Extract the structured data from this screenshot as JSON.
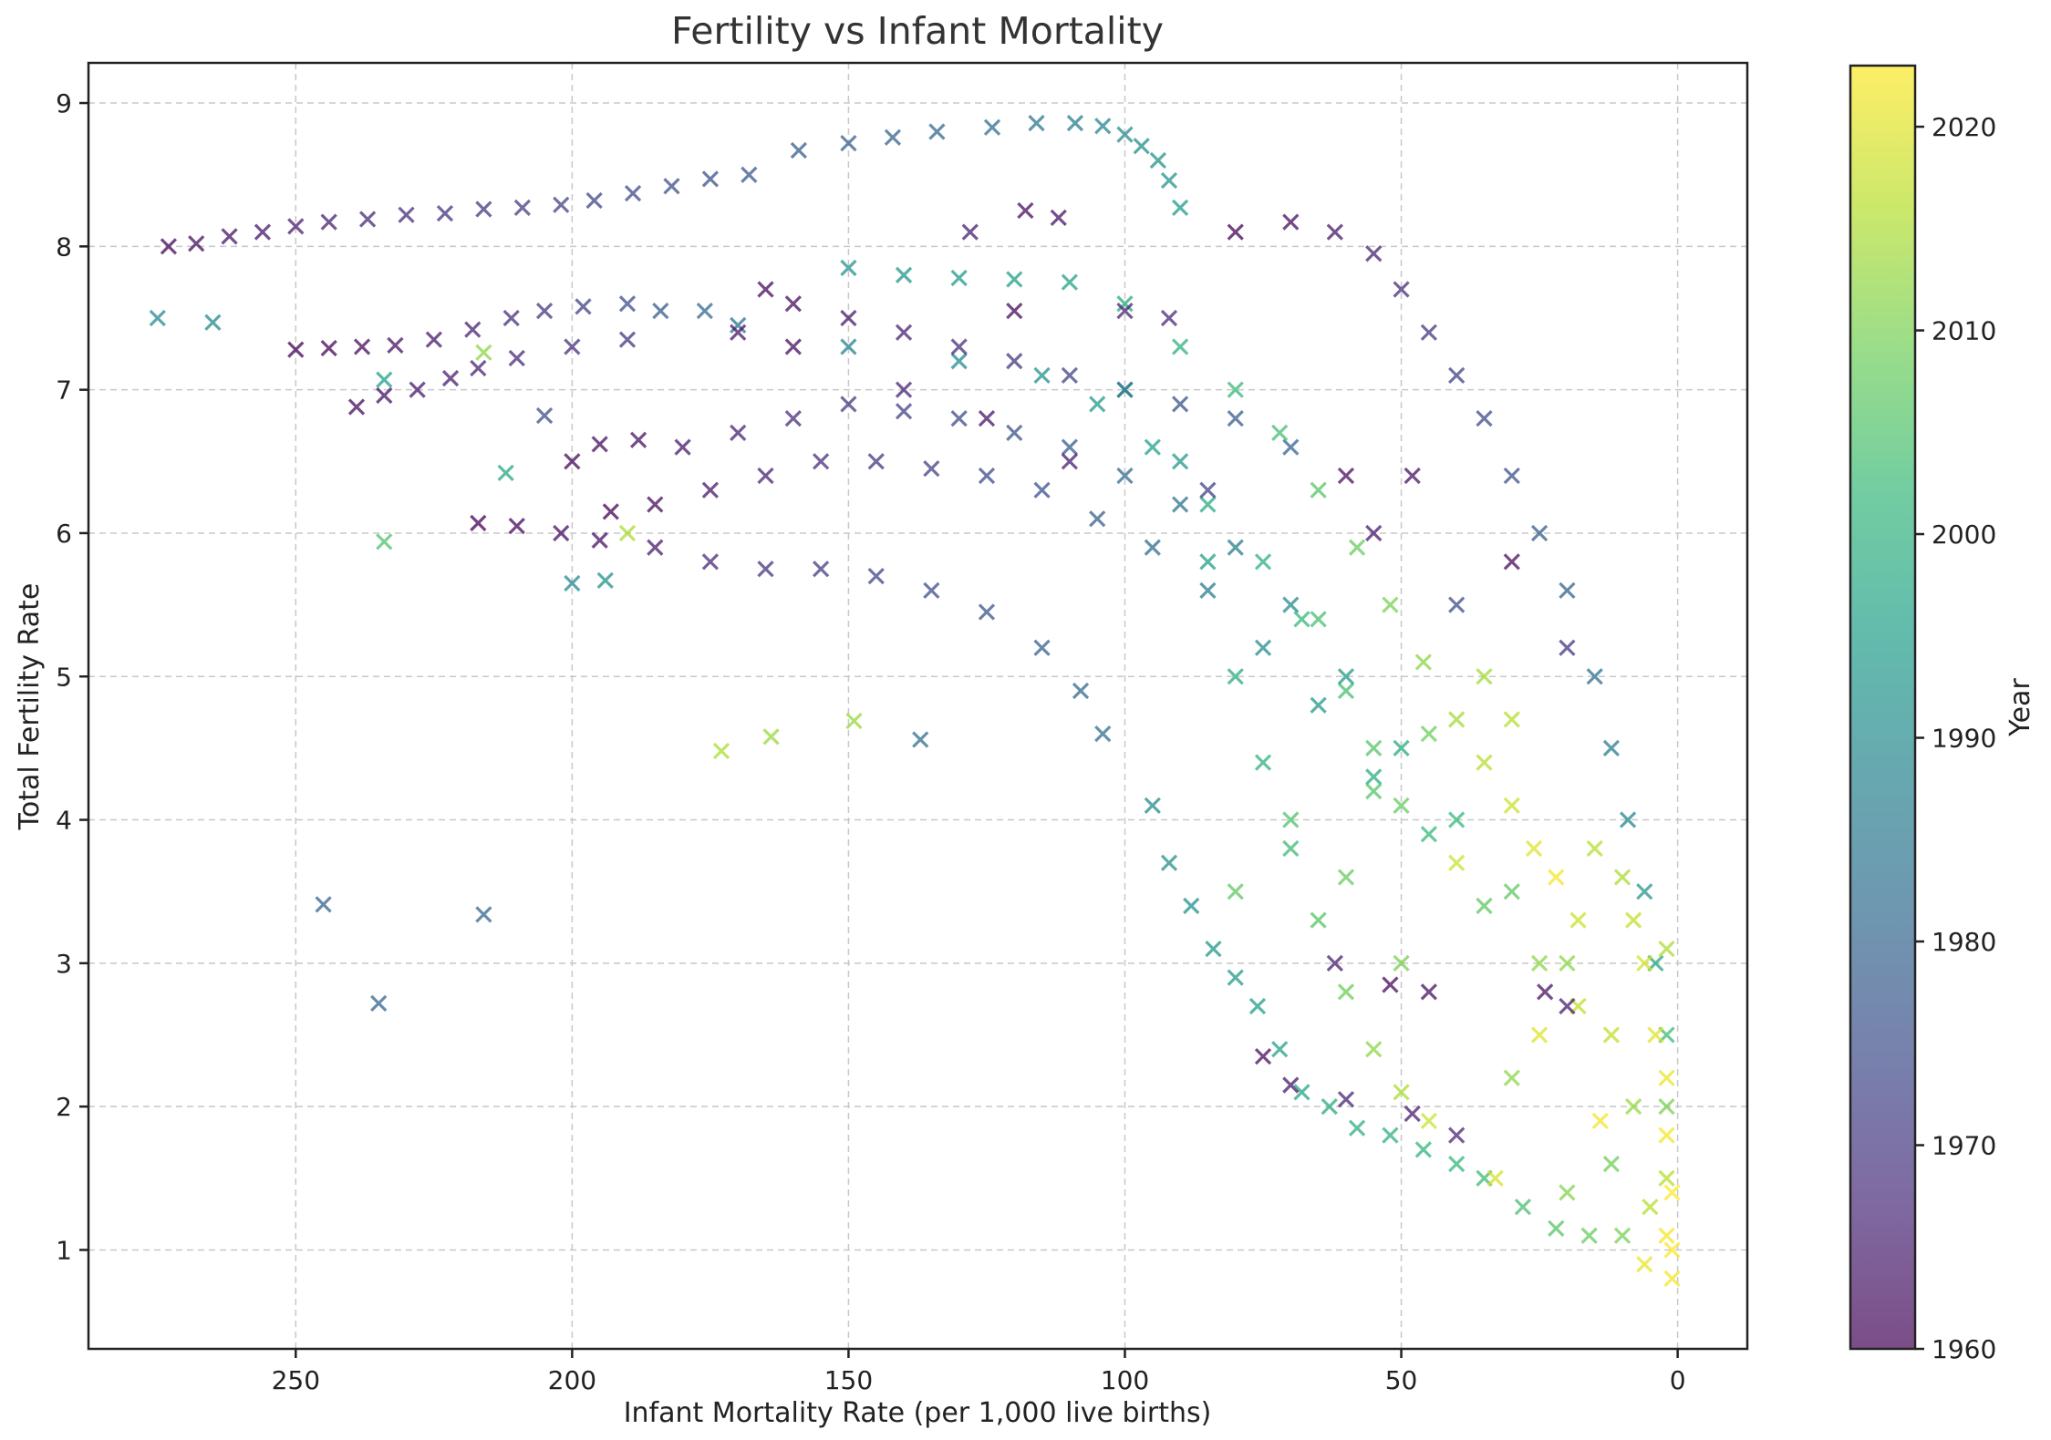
{
  "chart_data": {
    "type": "scatter",
    "title": "Fertility vs Infant Mortality",
    "xlabel": "Infant Mortality Rate (per 1,000 live births)",
    "ylabel": "Total Fertility Rate",
    "xlim": [
      287.5,
      -12.6
    ],
    "x_inverted": true,
    "ylim": [
      0.31,
      9.28
    ],
    "xticks": [
      250,
      200,
      150,
      100,
      50,
      0
    ],
    "yticks": [
      1,
      2,
      3,
      4,
      5,
      6,
      7,
      8,
      9
    ],
    "grid": true,
    "marker": "x",
    "colorbar": {
      "label": "Year",
      "range": [
        1960,
        2023
      ],
      "ticks": [
        1960,
        1970,
        1980,
        1990,
        2000,
        2010,
        2020
      ],
      "colormap": "viridis"
    },
    "colormap_stops": [
      "#440154",
      "#482878",
      "#3e4989",
      "#31688e",
      "#26828e",
      "#1f9e89",
      "#35b779",
      "#6ece58",
      "#b5de2b",
      "#fde725"
    ],
    "point_fields": [
      "infant_mortality",
      "fertility",
      "year"
    ],
    "points": [
      [
        275,
        7.5,
        1990
      ],
      [
        265,
        7.47,
        1990
      ],
      [
        245,
        3.41,
        1980
      ],
      [
        235,
        2.72,
        1980
      ],
      [
        216,
        3.34,
        1980
      ],
      [
        234,
        5.94,
        2005
      ],
      [
        212,
        6.42,
        1997
      ],
      [
        234,
        7.07,
        1995
      ],
      [
        216,
        7.26,
        2012
      ],
      [
        200,
        5.65,
        1990
      ],
      [
        194,
        5.67,
        1992
      ],
      [
        173,
        4.48,
        2015
      ],
      [
        164,
        4.58,
        2013
      ],
      [
        149,
        4.69,
        2013
      ],
      [
        137,
        4.56,
        1982
      ],
      [
        190,
        6.0,
        2015
      ],
      [
        205,
        6.82,
        1975
      ],
      [
        273,
        8.0,
        1961
      ],
      [
        268,
        8.02,
        1962
      ],
      [
        262,
        8.07,
        1963
      ],
      [
        256,
        8.1,
        1964
      ],
      [
        250,
        8.14,
        1965
      ],
      [
        244,
        8.17,
        1966
      ],
      [
        237,
        8.19,
        1967
      ],
      [
        230,
        8.22,
        1968
      ],
      [
        223,
        8.23,
        1969
      ],
      [
        216,
        8.26,
        1970
      ],
      [
        209,
        8.27,
        1971
      ],
      [
        202,
        8.29,
        1972
      ],
      [
        196,
        8.32,
        1973
      ],
      [
        189,
        8.37,
        1974
      ],
      [
        182,
        8.42,
        1975
      ],
      [
        175,
        8.47,
        1976
      ],
      [
        168,
        8.5,
        1977
      ],
      [
        159,
        8.67,
        1978
      ],
      [
        150,
        8.72,
        1979
      ],
      [
        142,
        8.76,
        1980
      ],
      [
        134,
        8.8,
        1981
      ],
      [
        124,
        8.83,
        1983
      ],
      [
        116,
        8.86,
        1985
      ],
      [
        109,
        8.86,
        1987
      ],
      [
        104,
        8.84,
        1989
      ],
      [
        100,
        8.78,
        1990
      ],
      [
        97,
        8.7,
        1991
      ],
      [
        94,
        8.6,
        1992
      ],
      [
        92,
        8.46,
        1993
      ],
      [
        90,
        8.27,
        1994
      ],
      [
        250,
        7.28,
        1960
      ],
      [
        244,
        7.29,
        1961
      ],
      [
        238,
        7.3,
        1962
      ],
      [
        232,
        7.31,
        1963
      ],
      [
        225,
        7.35,
        1964
      ],
      [
        218,
        7.42,
        1966
      ],
      [
        211,
        7.5,
        1968
      ],
      [
        205,
        7.55,
        1970
      ],
      [
        198,
        7.58,
        1972
      ],
      [
        190,
        7.6,
        1975
      ],
      [
        184,
        7.55,
        1978
      ],
      [
        176,
        7.55,
        1981
      ],
      [
        170,
        7.45,
        1984
      ],
      [
        150,
        7.3,
        1988
      ],
      [
        130,
        7.2,
        1990
      ],
      [
        115,
        7.1,
        1992
      ],
      [
        105,
        6.9,
        1994
      ],
      [
        95,
        6.6,
        1996
      ],
      [
        85,
        6.2,
        1998
      ],
      [
        75,
        5.8,
        2000
      ],
      [
        68,
        5.4,
        2002
      ],
      [
        60,
        4.9,
        2004
      ],
      [
        55,
        4.5,
        2006
      ],
      [
        50,
        4.1,
        2008
      ],
      [
        239,
        6.88,
        1962
      ],
      [
        234,
        6.96,
        1963
      ],
      [
        228,
        7.0,
        1964
      ],
      [
        222,
        7.08,
        1965
      ],
      [
        217,
        7.15,
        1966
      ],
      [
        210,
        7.22,
        1967
      ],
      [
        200,
        7.3,
        1968
      ],
      [
        190,
        7.35,
        1970
      ],
      [
        165,
        7.7,
        1961
      ],
      [
        160,
        7.6,
        1962
      ],
      [
        150,
        7.5,
        1964
      ],
      [
        140,
        7.4,
        1966
      ],
      [
        130,
        7.3,
        1968
      ],
      [
        120,
        7.2,
        1970
      ],
      [
        110,
        7.1,
        1972
      ],
      [
        100,
        7.0,
        1974
      ],
      [
        90,
        6.9,
        1976
      ],
      [
        80,
        6.8,
        1978
      ],
      [
        70,
        6.6,
        1980
      ],
      [
        200,
        6.5,
        1961
      ],
      [
        195,
        6.62,
        1962
      ],
      [
        188,
        6.65,
        1963
      ],
      [
        180,
        6.6,
        1964
      ],
      [
        170,
        6.7,
        1966
      ],
      [
        160,
        6.8,
        1968
      ],
      [
        150,
        6.9,
        1970
      ],
      [
        140,
        6.85,
        1972
      ],
      [
        130,
        6.8,
        1974
      ],
      [
        120,
        6.7,
        1976
      ],
      [
        110,
        6.6,
        1978
      ],
      [
        100,
        6.4,
        1981
      ],
      [
        90,
        6.2,
        1984
      ],
      [
        80,
        5.9,
        1987
      ],
      [
        70,
        5.5,
        1990
      ],
      [
        60,
        5.0,
        1994
      ],
      [
        50,
        4.5,
        1998
      ],
      [
        40,
        4.0,
        2002
      ],
      [
        30,
        3.5,
        2007
      ],
      [
        20,
        3.0,
        2012
      ],
      [
        12,
        2.5,
        2017
      ],
      [
        193,
        6.15,
        1960
      ],
      [
        185,
        6.2,
        1962
      ],
      [
        175,
        6.3,
        1964
      ],
      [
        165,
        6.4,
        1966
      ],
      [
        155,
        6.5,
        1968
      ],
      [
        145,
        6.5,
        1970
      ],
      [
        135,
        6.45,
        1972
      ],
      [
        125,
        6.4,
        1974
      ],
      [
        115,
        6.3,
        1976
      ],
      [
        105,
        6.1,
        1979
      ],
      [
        95,
        5.9,
        1982
      ],
      [
        85,
        5.6,
        1986
      ],
      [
        75,
        5.2,
        1990
      ],
      [
        65,
        4.8,
        1994
      ],
      [
        55,
        4.3,
        1998
      ],
      [
        45,
        3.9,
        2002
      ],
      [
        35,
        3.4,
        2007
      ],
      [
        25,
        3.0,
        2012
      ],
      [
        18,
        2.7,
        2017
      ],
      [
        217,
        6.07,
        1960
      ],
      [
        210,
        6.05,
        1961
      ],
      [
        202,
        6.0,
        1962
      ],
      [
        195,
        5.95,
        1963
      ],
      [
        185,
        5.9,
        1965
      ],
      [
        175,
        5.8,
        1967
      ],
      [
        165,
        5.75,
        1969
      ],
      [
        155,
        5.75,
        1971
      ],
      [
        145,
        5.7,
        1973
      ],
      [
        135,
        5.6,
        1975
      ],
      [
        125,
        5.45,
        1977
      ],
      [
        115,
        5.2,
        1979
      ],
      [
        108,
        4.9,
        1981
      ],
      [
        104,
        4.6,
        1983
      ],
      [
        80,
        8.1,
        1960
      ],
      [
        70,
        8.17,
        1962
      ],
      [
        62,
        8.1,
        1964
      ],
      [
        55,
        7.95,
        1966
      ],
      [
        50,
        7.7,
        1968
      ],
      [
        45,
        7.4,
        1970
      ],
      [
        40,
        7.1,
        1972
      ],
      [
        35,
        6.8,
        1974
      ],
      [
        30,
        6.4,
        1976
      ],
      [
        25,
        6.0,
        1978
      ],
      [
        20,
        5.6,
        1980
      ],
      [
        15,
        5.0,
        1983
      ],
      [
        12,
        4.5,
        1986
      ],
      [
        9,
        4.0,
        1989
      ],
      [
        6,
        3.5,
        1993
      ],
      [
        4,
        3.0,
        1997
      ],
      [
        2,
        2.5,
        2003
      ],
      [
        2,
        2.0,
        2010
      ],
      [
        2,
        1.5,
        2016
      ],
      [
        2,
        1.1,
        2022
      ],
      [
        150,
        7.85,
        1992
      ],
      [
        140,
        7.8,
        1993
      ],
      [
        130,
        7.78,
        1994
      ],
      [
        120,
        7.77,
        1995
      ],
      [
        110,
        7.75,
        1996
      ],
      [
        100,
        7.6,
        1998
      ],
      [
        90,
        7.3,
        2000
      ],
      [
        80,
        7.0,
        2002
      ],
      [
        72,
        6.7,
        2004
      ],
      [
        65,
        6.3,
        2006
      ],
      [
        58,
        5.9,
        2008
      ],
      [
        52,
        5.5,
        2010
      ],
      [
        46,
        5.1,
        2012
      ],
      [
        40,
        4.7,
        2014
      ],
      [
        35,
        4.4,
        2016
      ],
      [
        30,
        4.1,
        2018
      ],
      [
        26,
        3.8,
        2020
      ],
      [
        22,
        3.6,
        2022
      ],
      [
        100,
        7.0,
        1990
      ],
      [
        90,
        6.5,
        1993
      ],
      [
        85,
        5.8,
        1995
      ],
      [
        80,
        5.0,
        1998
      ],
      [
        75,
        4.4,
        2000
      ],
      [
        70,
        3.8,
        2003
      ],
      [
        65,
        3.3,
        2006
      ],
      [
        60,
        2.8,
        2009
      ],
      [
        55,
        2.4,
        2012
      ],
      [
        50,
        2.1,
        2015
      ],
      [
        45,
        1.9,
        2018
      ],
      [
        95,
        4.1,
        1990
      ],
      [
        92,
        3.7,
        1991
      ],
      [
        88,
        3.4,
        1992
      ],
      [
        84,
        3.1,
        1993
      ],
      [
        80,
        2.9,
        1994
      ],
      [
        76,
        2.7,
        1995
      ],
      [
        72,
        2.4,
        1996
      ],
      [
        68,
        2.1,
        1997
      ],
      [
        63,
        2.0,
        1998
      ],
      [
        58,
        1.85,
        1999
      ],
      [
        52,
        1.8,
        2000
      ],
      [
        46,
        1.7,
        2001
      ],
      [
        40,
        1.6,
        2002
      ],
      [
        35,
        1.5,
        2003
      ],
      [
        28,
        1.3,
        2004
      ],
      [
        22,
        1.15,
        2006
      ],
      [
        16,
        1.1,
        2008
      ],
      [
        10,
        1.1,
        2010
      ],
      [
        75,
        2.35,
        1962
      ],
      [
        70,
        2.15,
        1964
      ],
      [
        60,
        2.05,
        1966
      ],
      [
        48,
        1.95,
        1965
      ],
      [
        40,
        1.8,
        1967
      ],
      [
        24,
        2.8,
        1963
      ],
      [
        20,
        2.7,
        1965
      ],
      [
        52,
        2.85,
        1961
      ],
      [
        10,
        3.6,
        2015
      ],
      [
        8,
        3.3,
        2017
      ],
      [
        6,
        3.0,
        2019
      ],
      [
        4,
        2.5,
        2020
      ],
      [
        2,
        2.2,
        2021
      ],
      [
        2,
        1.8,
        2022
      ],
      [
        1,
        1.4,
        2023
      ],
      [
        1,
        1.0,
        2023
      ],
      [
        1,
        0.8,
        2022
      ],
      [
        6,
        0.9,
        2021
      ],
      [
        2,
        3.1,
        2015
      ],
      [
        18,
        3.3,
        2018
      ],
      [
        15,
        3.8,
        2016
      ],
      [
        30,
        4.7,
        2016
      ],
      [
        35,
        5.0,
        2014
      ],
      [
        40,
        3.7,
        2018
      ],
      [
        25,
        2.5,
        2020
      ],
      [
        33,
        1.5,
        2019
      ],
      [
        14,
        1.9,
        2022
      ],
      [
        60,
        3.6,
        2008
      ],
      [
        55,
        4.2,
        2006
      ],
      [
        45,
        4.6,
        2009
      ],
      [
        70,
        4.0,
        2005
      ],
      [
        80,
        3.5,
        2007
      ],
      [
        65,
        5.4,
        2004
      ],
      [
        50,
        3.0,
        2010
      ],
      [
        30,
        2.2,
        2012
      ],
      [
        20,
        1.4,
        2011
      ],
      [
        12,
        1.6,
        2009
      ],
      [
        8,
        2.0,
        2013
      ],
      [
        5,
        1.3,
        2016
      ],
      [
        60,
        6.4,
        1962
      ],
      [
        55,
        6.0,
        1964
      ],
      [
        48,
        6.4,
        1963
      ],
      [
        30,
        5.8,
        1962
      ],
      [
        62,
        3.0,
        1965
      ],
      [
        45,
        2.8,
        1963
      ],
      [
        20,
        5.2,
        1970
      ],
      [
        40,
        5.5,
        1975
      ],
      [
        85,
        6.3,
        1972
      ],
      [
        110,
        6.5,
        1965
      ],
      [
        125,
        6.8,
        1963
      ],
      [
        140,
        7.0,
        1966
      ],
      [
        120,
        7.55,
        1961
      ],
      [
        118,
        8.25,
        1962
      ],
      [
        112,
        8.2,
        1963
      ],
      [
        128,
        8.1,
        1965
      ],
      [
        160,
        7.3,
        1962
      ],
      [
        170,
        7.4,
        1964
      ],
      [
        92,
        7.5,
        1967
      ],
      [
        100,
        7.55,
        1966
      ]
    ]
  }
}
